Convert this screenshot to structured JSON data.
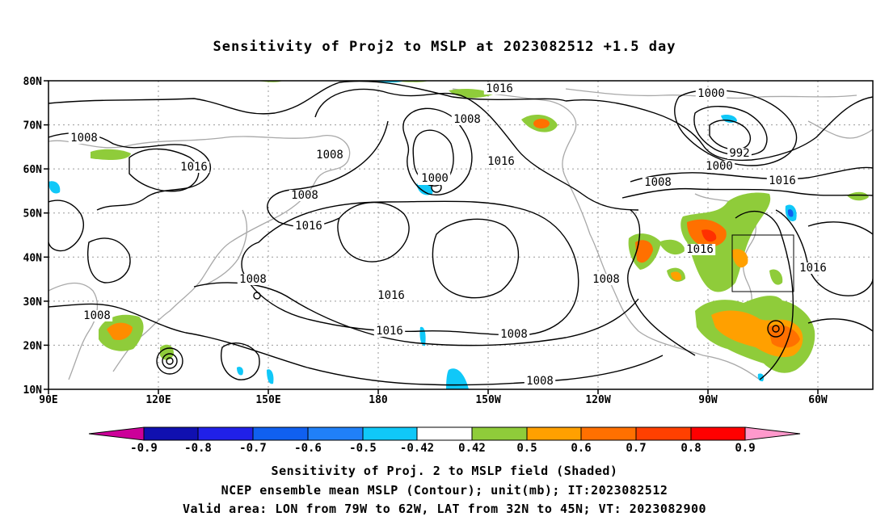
{
  "title": "Sensitivity of Proj2 to MSLP at 2023082512 +1.5 day",
  "lat_labels": [
    "80N",
    "70N",
    "60N",
    "50N",
    "40N",
    "30N",
    "20N",
    "10N"
  ],
  "lon_labels": [
    "90E",
    "120E",
    "150E",
    "180",
    "150W",
    "120W",
    "90W",
    "60W"
  ],
  "contour_labels": [
    {
      "text": "1016"
    },
    {
      "text": "1000"
    },
    {
      "text": "1008"
    },
    {
      "text": "1008"
    },
    {
      "text": "992"
    },
    {
      "text": "1000"
    },
    {
      "text": "1008"
    },
    {
      "text": "1016"
    },
    {
      "text": "1016"
    },
    {
      "text": "1008"
    },
    {
      "text": "1016"
    },
    {
      "text": "1008"
    },
    {
      "text": "1000"
    },
    {
      "text": "1016"
    },
    {
      "text": "1016"
    },
    {
      "text": "1016"
    },
    {
      "text": "1008"
    },
    {
      "text": "1008"
    },
    {
      "text": "1016"
    },
    {
      "text": "1008"
    },
    {
      "text": "1016"
    },
    {
      "text": "1016"
    },
    {
      "text": "1008"
    },
    {
      "text": "1008"
    }
  ],
  "colorbar": {
    "labels": [
      "-0.9",
      "-0.8",
      "-0.7",
      "-0.6",
      "-0.5",
      "-0.42",
      "0.42",
      "0.5",
      "0.6",
      "0.7",
      "0.8",
      "0.9"
    ],
    "colors": [
      "#cc0099",
      "#1010b0",
      "#2020e8",
      "#1060f0",
      "#2080f8",
      "#10c8f8",
      "#ffffff",
      "#8fcc3a",
      "#ffa000",
      "#ff7000",
      "#ff4000",
      "#ff0000",
      "#ff99cc"
    ]
  },
  "captions": {
    "line1": "Sensitivity of Proj. 2 to MSLP field (Shaded)",
    "line2": "NCEP ensemble mean MSLP (Contour); unit(mb); IT:2023082512",
    "line3": "Valid area: LON from 79W to 62W, LAT from 32N to 45N; VT: 2023082900"
  }
}
